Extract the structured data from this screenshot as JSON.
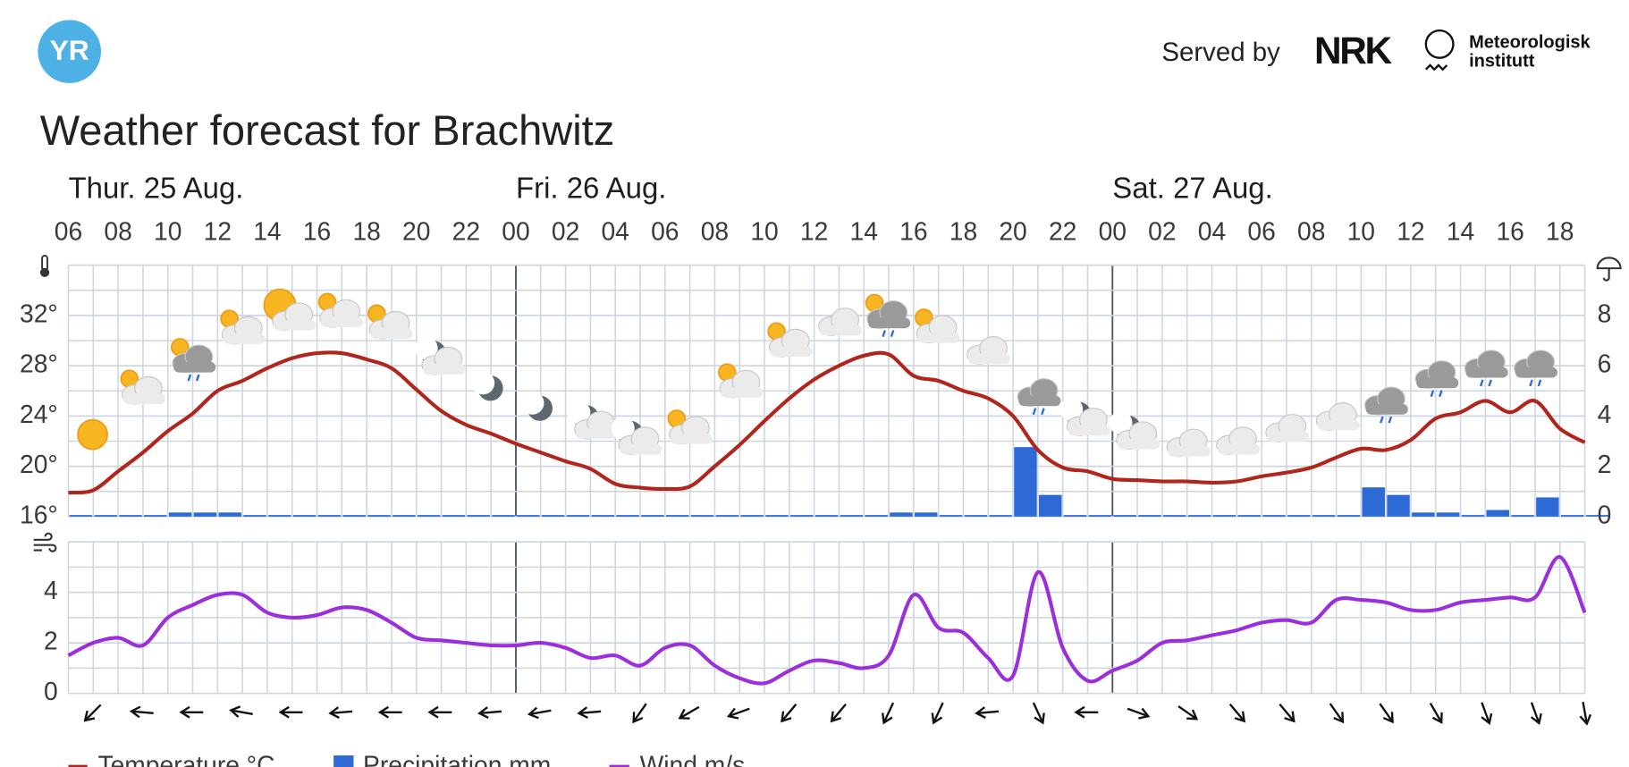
{
  "header": {
    "logo": "YR",
    "served_by": "Served by",
    "nrk": "NRK",
    "met_line1": "Meteorologisk",
    "met_line2": "institutt",
    "title": "Weather forecast for Brachwitz"
  },
  "chart_data": [
    {
      "type": "line",
      "day_labels": [
        "Thur. 25 Aug.",
        "Fri. 26 Aug.",
        "Sat. 27 Aug."
      ],
      "categories": [
        "06",
        null,
        "08",
        null,
        "10",
        null,
        "12",
        null,
        "14",
        null,
        "16",
        null,
        "18",
        null,
        "20",
        null,
        "22",
        null,
        "00",
        null,
        "02",
        null,
        "04",
        null,
        "06",
        null,
        "08",
        null,
        "10",
        null,
        "12",
        null,
        "14",
        null,
        "16",
        null,
        "18",
        null,
        "20",
        null,
        "22",
        null,
        "00",
        null,
        "02",
        null,
        "04",
        null,
        "06",
        null,
        "08",
        null,
        "10",
        null,
        "12",
        null,
        "14",
        null,
        "16",
        null,
        "18",
        null
      ],
      "series": [
        {
          "name": "Temperature °C",
          "type": "line",
          "color": "#b0261c",
          "values": [
            17.9,
            18.1,
            19.6,
            21.1,
            22.8,
            24.2,
            26.0,
            26.8,
            27.8,
            28.6,
            29.0,
            29.0,
            28.5,
            27.8,
            26.1,
            24.4,
            23.3,
            22.6,
            21.8,
            21.1,
            20.4,
            19.8,
            18.6,
            18.3,
            18.2,
            18.4,
            20.0,
            21.7,
            23.6,
            25.4,
            26.9,
            28.0,
            28.8,
            28.9,
            27.2,
            26.8,
            26.0,
            25.4,
            24.0,
            21.3,
            19.9,
            19.6,
            19.0,
            18.9,
            18.8,
            18.8,
            18.7,
            18.8,
            19.2,
            19.5,
            19.9,
            20.7,
            21.4,
            21.3,
            22.1,
            23.8,
            24.3,
            25.2,
            24.3,
            25.2,
            23.0,
            21.9
          ]
        },
        {
          "name": "Precipitation mm",
          "type": "bar",
          "axis": "y2",
          "color": "#2d6ad6",
          "values": [
            0,
            0,
            0,
            0,
            0.1,
            0.1,
            0.1,
            0,
            0,
            0,
            0,
            0,
            0,
            0,
            0,
            0,
            0,
            0,
            0,
            0,
            0,
            0,
            0,
            0,
            0,
            0,
            0,
            0,
            0,
            0,
            0,
            0,
            0,
            0.1,
            0.1,
            0,
            0,
            0,
            2.7,
            0.8,
            0,
            0,
            0,
            0,
            0,
            0,
            0,
            0,
            0,
            0,
            0,
            0,
            1.1,
            0.8,
            0.1,
            0.1,
            0,
            0.2,
            0,
            0.7,
            0,
            0
          ]
        }
      ],
      "ylim": [
        16,
        36
      ],
      "yticks": [
        {
          "value": 16,
          "label": "16°"
        },
        {
          "value": 20,
          "label": "20°"
        },
        {
          "value": 24,
          "label": "24°"
        },
        {
          "value": 28,
          "label": "28°"
        },
        {
          "value": 32,
          "label": "32°"
        }
      ],
      "y2lim": [
        0,
        10
      ],
      "y2ticks": [
        0,
        2,
        4,
        6,
        8
      ],
      "grid": true
    },
    {
      "type": "line",
      "series": [
        {
          "name": "Wind m/s",
          "type": "line",
          "color": "#9b2fdc",
          "values": [
            1.5,
            2.0,
            2.2,
            1.9,
            3.0,
            3.5,
            3.9,
            3.9,
            3.2,
            3.0,
            3.1,
            3.4,
            3.3,
            2.8,
            2.2,
            2.1,
            2.0,
            1.9,
            1.9,
            2.0,
            1.8,
            1.4,
            1.5,
            1.1,
            1.8,
            1.9,
            1.1,
            0.6,
            0.4,
            0.9,
            1.3,
            1.2,
            1.0,
            1.5,
            3.9,
            2.6,
            2.4,
            1.4,
            0.7,
            4.8,
            1.8,
            0.5,
            0.9,
            1.3,
            2.0,
            2.1,
            2.3,
            2.5,
            2.8,
            2.9,
            2.8,
            3.7,
            3.7,
            3.6,
            3.3,
            3.3,
            3.6,
            3.7,
            3.8,
            3.8,
            5.4,
            3.2
          ],
          "direction": [
            null,
            225,
            null,
            275,
            null,
            270,
            null,
            280,
            null,
            270,
            null,
            265,
            null,
            270,
            null,
            270,
            null,
            265,
            null,
            260,
            null,
            265,
            null,
            215,
            null,
            240,
            null,
            250,
            null,
            220,
            null,
            220,
            null,
            205,
            null,
            205,
            null,
            265,
            null,
            155,
            null,
            270,
            null,
            110,
            null,
            125,
            null,
            140,
            null,
            140,
            null,
            145,
            null,
            145,
            null,
            150,
            null,
            160,
            null,
            160,
            null,
            170
          ]
        }
      ],
      "ylim": [
        0,
        6
      ],
      "yticks": [
        0,
        2,
        4
      ],
      "grid": true
    }
  ]
}
